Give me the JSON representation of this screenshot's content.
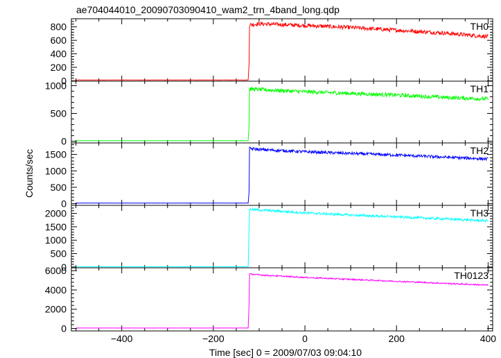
{
  "chart_data": {
    "type": "line",
    "title": "ae704044010_20090703090410_wam2_trn_4band_long.qdp",
    "xlabel": "Time [sec] 0 = 2009/07/03 09:04:10",
    "ylabel": "Counts/sec",
    "xlim": [
      -510,
      410
    ],
    "x_ticks": [
      "−400",
      "−200",
      "0",
      "200",
      "400"
    ],
    "x_tick_values": [
      -400,
      -200,
      0,
      200,
      400
    ],
    "onset_x": -122,
    "panels": [
      {
        "name": "TH0",
        "color": "#ff0000",
        "ylim": [
          -5,
          920
        ],
        "yticks": [
          0,
          200,
          400,
          600,
          800
        ],
        "ytick_labels": [
          "0",
          "200",
          "400",
          "600",
          "800"
        ],
        "baseline": 12,
        "points": [
          [
            -500,
            12
          ],
          [
            -124,
            12
          ],
          [
            -122,
            250
          ],
          [
            -121,
            830
          ],
          [
            -100,
            845
          ],
          [
            0,
            820
          ],
          [
            100,
            790
          ],
          [
            200,
            750
          ],
          [
            300,
            710
          ],
          [
            400,
            655
          ]
        ],
        "noise": 30
      },
      {
        "name": "TH1",
        "color": "#00ff00",
        "ylim": [
          -30,
          1080
        ],
        "yticks": [
          0,
          500,
          1000
        ],
        "ytick_labels": [
          "0",
          "500",
          "1000"
        ],
        "baseline": 10,
        "points": [
          [
            -500,
            10
          ],
          [
            -124,
            10
          ],
          [
            -122,
            300
          ],
          [
            -121,
            940
          ],
          [
            -100,
            930
          ],
          [
            0,
            890
          ],
          [
            100,
            860
          ],
          [
            200,
            830
          ],
          [
            300,
            790
          ],
          [
            400,
            760
          ]
        ],
        "noise": 35
      },
      {
        "name": "TH2",
        "color": "#0000ff",
        "ylim": [
          -50,
          1850
        ],
        "yticks": [
          0,
          500,
          1000,
          1500
        ],
        "ytick_labels": [
          "0",
          "500",
          "1000",
          "1500"
        ],
        "baseline": 20,
        "points": [
          [
            -500,
            20
          ],
          [
            -124,
            20
          ],
          [
            -122,
            350
          ],
          [
            -121,
            1680
          ],
          [
            -100,
            1650
          ],
          [
            0,
            1580
          ],
          [
            100,
            1530
          ],
          [
            200,
            1480
          ],
          [
            300,
            1420
          ],
          [
            400,
            1360
          ]
        ],
        "noise": 45
      },
      {
        "name": "TH3",
        "color": "#00ffff",
        "ylim": [
          -30,
          2300
        ],
        "yticks": [
          0,
          500,
          1000,
          1500,
          2000
        ],
        "ytick_labels": [
          "0",
          "500",
          "1000",
          "1500",
          "2000"
        ],
        "baseline": 10,
        "points": [
          [
            -500,
            10
          ],
          [
            -124,
            10
          ],
          [
            -121,
            2150
          ],
          [
            -100,
            2130
          ],
          [
            0,
            2020
          ],
          [
            100,
            1940
          ],
          [
            200,
            1870
          ],
          [
            300,
            1800
          ],
          [
            400,
            1720
          ]
        ],
        "noise": 45
      },
      {
        "name": "TH0123",
        "color": "#ff00ff",
        "ylim": [
          -250,
          6300
        ],
        "yticks": [
          0,
          2000,
          4000,
          6000
        ],
        "ytick_labels": [
          "0",
          "2000",
          "4000",
          "6000"
        ],
        "baseline": 50,
        "points": [
          [
            -500,
            50
          ],
          [
            -124,
            50
          ],
          [
            -122,
            2500
          ],
          [
            -121,
            5650
          ],
          [
            -100,
            5560
          ],
          [
            0,
            5300
          ],
          [
            100,
            5100
          ],
          [
            200,
            4900
          ],
          [
            300,
            4700
          ],
          [
            400,
            4500
          ]
        ],
        "noise": 70
      }
    ]
  }
}
